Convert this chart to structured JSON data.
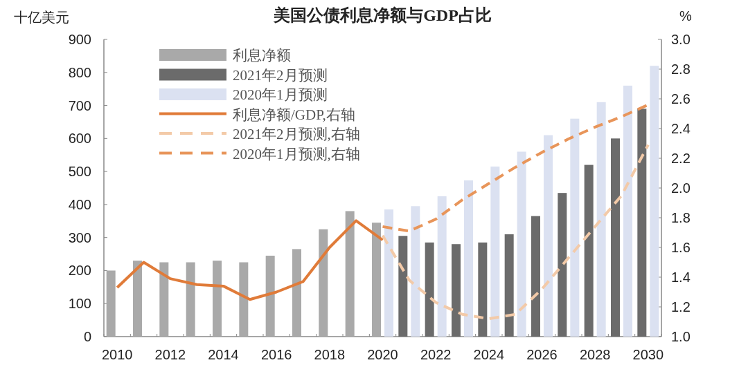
{
  "chart_data": {
    "type": "bar",
    "title": "美国公债利息净额与GDP占比",
    "ylabel": "十亿美元",
    "y2label": "%",
    "categories": [
      "2010",
      null,
      "2012",
      null,
      "2014",
      null,
      "2016",
      null,
      "2018",
      null,
      "2020",
      null,
      "2022",
      null,
      "2024",
      null,
      "2026",
      null,
      "2028",
      null,
      "2030"
    ],
    "ylim": [
      0,
      900
    ],
    "yticks": [
      0,
      100,
      200,
      300,
      400,
      500,
      600,
      700,
      800,
      900
    ],
    "y2lim": [
      1.0,
      3.0
    ],
    "y2ticks": [
      {
        "value": 1.0,
        "label": "1.0"
      },
      {
        "value": 1.2,
        "label": "1.2"
      },
      {
        "value": 1.4,
        "label": "1.4"
      },
      {
        "value": 1.6,
        "label": "1.6"
      },
      {
        "value": 1.8,
        "label": "1.8"
      },
      {
        "value": 2.0,
        "label": "2.0"
      },
      {
        "value": 2.2,
        "label": "2.2"
      },
      {
        "value": 2.4,
        "label": "2.4"
      },
      {
        "value": 2.6,
        "label": "2.6"
      },
      {
        "value": 2.8,
        "label": "2.8"
      },
      {
        "value": 3.0,
        "label": "3.0"
      }
    ],
    "grid": false,
    "legend": "top left",
    "series": [
      {
        "name": "利息净额",
        "color": "#a9a9a9",
        "values": [
          200,
          230,
          225,
          225,
          230,
          225,
          245,
          265,
          325,
          380,
          345,
          null,
          null,
          null,
          null,
          null,
          null,
          null,
          null,
          null,
          null
        ]
      },
      {
        "name": "2021年2月预测",
        "color": "#6b6b6b",
        "values": [
          null,
          null,
          null,
          null,
          null,
          null,
          null,
          null,
          null,
          null,
          null,
          305,
          285,
          280,
          285,
          310,
          365,
          435,
          520,
          600,
          690
        ]
      },
      {
        "name": "2020年1月预测",
        "color": "#dbe1f1",
        "values": [
          null,
          null,
          null,
          null,
          null,
          null,
          null,
          null,
          null,
          null,
          385,
          395,
          425,
          473,
          515,
          560,
          610,
          660,
          710,
          760,
          820
        ]
      },
      {
        "name": "利息净额/GDP,右轴",
        "type": "line",
        "axis": "y2",
        "line_style": "solid",
        "color": "#e07b39",
        "values": [
          1.33,
          1.5,
          1.39,
          1.35,
          1.34,
          1.25,
          1.3,
          1.37,
          1.6,
          1.78,
          1.65,
          null,
          null,
          null,
          null,
          null,
          null,
          null,
          null,
          null,
          null
        ]
      },
      {
        "name": "2021年2月预测,右轴",
        "type": "line",
        "axis": "y2",
        "line_style": "dashed",
        "color": "#f3caa8",
        "values": [
          null,
          null,
          null,
          null,
          null,
          null,
          null,
          null,
          null,
          null,
          1.68,
          1.38,
          1.23,
          1.15,
          1.12,
          1.15,
          1.32,
          1.53,
          1.74,
          1.95,
          2.29
        ]
      },
      {
        "name": "2020年1月预测,右轴",
        "type": "line",
        "axis": "y2",
        "line_style": "dashed",
        "color": "#e8955a",
        "values": [
          null,
          null,
          null,
          null,
          null,
          null,
          null,
          null,
          null,
          null,
          1.74,
          1.71,
          1.79,
          1.92,
          2.03,
          2.14,
          2.24,
          2.33,
          2.41,
          2.48,
          2.56
        ]
      }
    ]
  }
}
